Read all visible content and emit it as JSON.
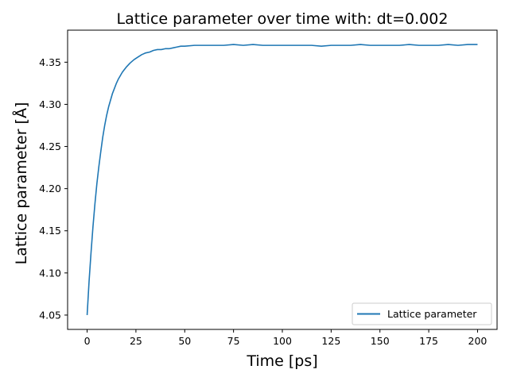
{
  "chart_data": {
    "type": "line",
    "title": "Lattice parameter over time with: dt=0.002",
    "xlabel": "Time [ps]",
    "ylabel": "Lattice parameter [Å]",
    "xlim": [
      -10,
      210
    ],
    "ylim": [
      4.033,
      4.388
    ],
    "xticks": [
      0,
      25,
      50,
      75,
      100,
      125,
      150,
      175,
      200
    ],
    "yticks": [
      4.05,
      4.1,
      4.15,
      4.2,
      4.25,
      4.3,
      4.35
    ],
    "ytick_labels": [
      "4.05",
      "4.10",
      "4.15",
      "4.20",
      "4.25",
      "4.30",
      "4.35"
    ],
    "grid": false,
    "legend": {
      "position": "lower-right",
      "entries": [
        "Lattice parameter"
      ]
    },
    "series": [
      {
        "name": "Lattice parameter",
        "color": "#1f77b4",
        "x": [
          0,
          1,
          2,
          3,
          4,
          5,
          6,
          7,
          8,
          9,
          10,
          11,
          12,
          13,
          14,
          15,
          16,
          17,
          18,
          19,
          20,
          22,
          24,
          26,
          28,
          30,
          32,
          34,
          36,
          38,
          40,
          42,
          44,
          46,
          48,
          50,
          55,
          60,
          65,
          70,
          75,
          80,
          85,
          90,
          95,
          100,
          105,
          110,
          115,
          120,
          125,
          130,
          135,
          140,
          145,
          150,
          155,
          160,
          165,
          170,
          175,
          180,
          185,
          190,
          195,
          200
        ],
        "values": [
          4.05,
          4.09,
          4.124,
          4.155,
          4.182,
          4.206,
          4.226,
          4.244,
          4.261,
          4.275,
          4.287,
          4.297,
          4.305,
          4.313,
          4.319,
          4.325,
          4.33,
          4.334,
          4.338,
          4.341,
          4.344,
          4.349,
          4.353,
          4.356,
          4.359,
          4.361,
          4.362,
          4.364,
          4.365,
          4.365,
          4.366,
          4.366,
          4.367,
          4.368,
          4.369,
          4.369,
          4.37,
          4.37,
          4.37,
          4.37,
          4.371,
          4.37,
          4.371,
          4.37,
          4.37,
          4.37,
          4.37,
          4.37,
          4.37,
          4.369,
          4.37,
          4.37,
          4.37,
          4.371,
          4.37,
          4.37,
          4.37,
          4.37,
          4.371,
          4.37,
          4.37,
          4.37,
          4.371,
          4.37,
          4.371,
          4.371
        ]
      }
    ]
  }
}
